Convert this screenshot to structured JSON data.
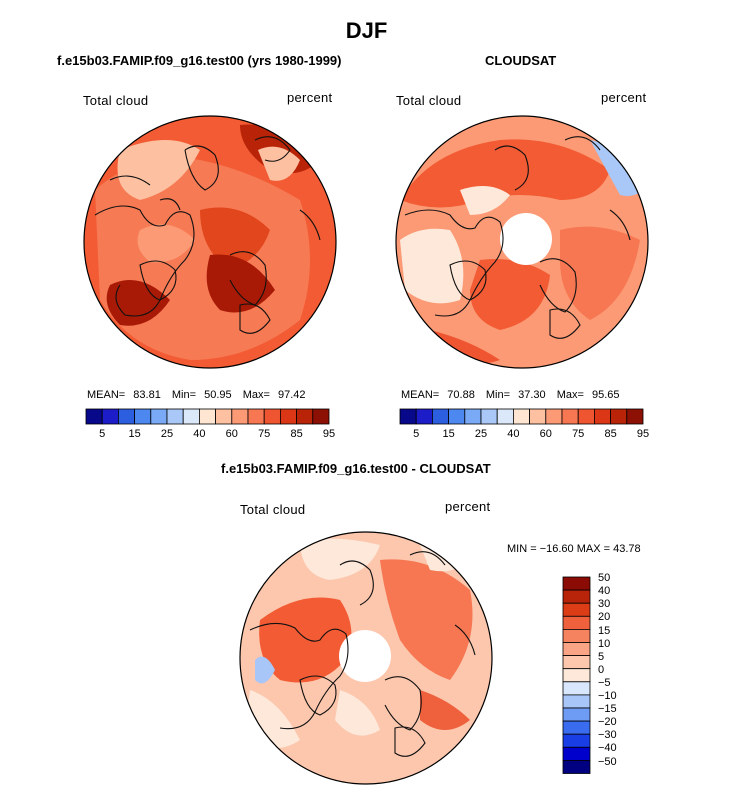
{
  "title": "DJF",
  "colors": {
    "seq": [
      "#08088a",
      "#1c1cc8",
      "#2c5ee0",
      "#4d88f0",
      "#7aaaf5",
      "#a9c8f7",
      "#dbe8fa",
      "#ffe6d2",
      "#fdc0a0",
      "#fb9a75",
      "#f67752",
      "#ef5530",
      "#db3716",
      "#b92408",
      "#8c1004"
    ],
    "div": [
      "#000080",
      "#0000cd",
      "#1a3ee6",
      "#3a6cf0",
      "#6e9cf5",
      "#a8c6f8",
      "#d8e7fb",
      "#fde8da",
      "#fcc7ad",
      "#f9a585",
      "#f5835f",
      "#ef603c",
      "#dc3d16",
      "#b8240a",
      "#8b0c04"
    ]
  },
  "panels": [
    {
      "subtitle": "f.e15b03.FAMIP.f09_g16.test00 (yrs 1980-1999)",
      "var_label": "Total cloud",
      "units_label": "percent",
      "stats": {
        "mean_label": "MEAN=",
        "mean": "83.81",
        "min_label": "Min=",
        "min": "50.95",
        "max_label": "Max=",
        "max": "97.42"
      },
      "colorbar_ticks": [
        "5",
        "15",
        "25",
        "40",
        "60",
        "75",
        "85",
        "95"
      ]
    },
    {
      "subtitle": "CLOUDSAT",
      "var_label": "Total cloud",
      "units_label": "percent",
      "stats": {
        "mean_label": "MEAN=",
        "mean": "70.88",
        "min_label": "Min=",
        "min": "37.30",
        "max_label": "Max=",
        "max": "95.65"
      },
      "colorbar_ticks": [
        "5",
        "15",
        "25",
        "40",
        "60",
        "75",
        "85",
        "95"
      ]
    },
    {
      "subtitle": "f.e15b03.FAMIP.f09_g16.test00 - CLOUDSAT",
      "var_label": "Total cloud",
      "units_label": "percent",
      "minmax_text": "MIN = −16.60 MAX =  43.78",
      "colorbar_ticks": [
        "50",
        "40",
        "30",
        "20",
        "15",
        "10",
        "5",
        "0",
        "−5",
        "−10",
        "−15",
        "−20",
        "−30",
        "−40",
        "−50"
      ]
    }
  ],
  "chart_data": [
    {
      "type": "heatmap",
      "projection": "north-polar-stereographic",
      "title": "f.e15b03.FAMIP.f09_g16.test00 (yrs 1980-1999)",
      "variable": "Total cloud",
      "units": "percent",
      "mean": 83.81,
      "min": 50.95,
      "max": 97.42,
      "levels": [
        5,
        10,
        15,
        20,
        25,
        30,
        40,
        50,
        60,
        70,
        75,
        80,
        85,
        90,
        95
      ]
    },
    {
      "type": "heatmap",
      "projection": "north-polar-stereographic",
      "title": "CLOUDSAT",
      "variable": "Total cloud",
      "units": "percent",
      "mean": 70.88,
      "min": 37.3,
      "max": 95.65,
      "levels": [
        5,
        10,
        15,
        20,
        25,
        30,
        40,
        50,
        60,
        70,
        75,
        80,
        85,
        90,
        95
      ]
    },
    {
      "type": "heatmap",
      "projection": "north-polar-stereographic",
      "title": "f.e15b03.FAMIP.f09_g16.test00 - CLOUDSAT",
      "variable": "Total cloud",
      "units": "percent",
      "min": -16.6,
      "max": 43.78,
      "levels": [
        -50,
        -40,
        -30,
        -20,
        -15,
        -10,
        -5,
        0,
        5,
        10,
        15,
        20,
        30,
        40,
        50
      ]
    }
  ]
}
